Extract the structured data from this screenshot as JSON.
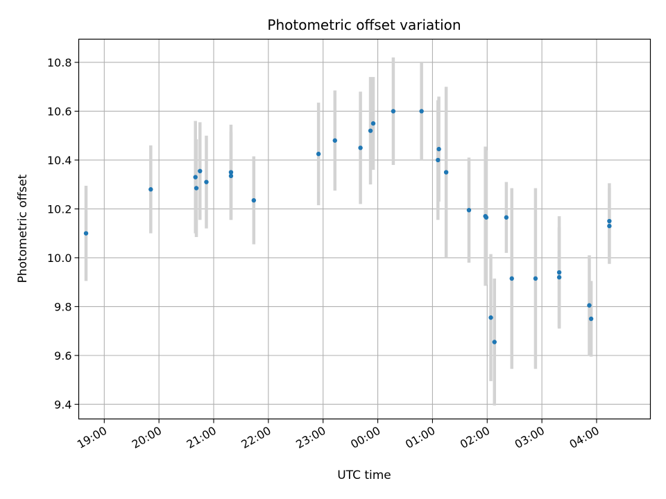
{
  "chart_data": {
    "type": "scatter",
    "title": "Photometric offset variation",
    "xlabel": "UTC time",
    "ylabel": "Photometric offset",
    "x_tick_labels": [
      "19:00",
      "20:00",
      "21:00",
      "22:00",
      "23:00",
      "00:00",
      "01:00",
      "02:00",
      "03:00",
      "04:00"
    ],
    "y_ticks": [
      9.4,
      9.6,
      9.8,
      10.0,
      10.2,
      10.4,
      10.6,
      10.8
    ],
    "y_tick_labels": [
      "9.4",
      "9.6",
      "9.8",
      "10.0",
      "10.2",
      "10.4",
      "10.6",
      "10.8"
    ],
    "xlim": [
      "18:32",
      "04:59"
    ],
    "ylim": [
      9.34,
      10.895
    ],
    "grid": true,
    "points": [
      {
        "x": "18:40",
        "y": 10.1,
        "err": 0.195
      },
      {
        "x": "19:51",
        "y": 10.28,
        "err": 0.18
      },
      {
        "x": "20:40",
        "y": 10.33,
        "err": 0.23
      },
      {
        "x": "20:41",
        "y": 10.285,
        "err": 0.2
      },
      {
        "x": "20:45",
        "y": 10.355,
        "err": 0.2
      },
      {
        "x": "20:52",
        "y": 10.31,
        "err": 0.19
      },
      {
        "x": "21:19",
        "y": 10.35,
        "err": 0.195
      },
      {
        "x": "21:19",
        "y": 10.335,
        "err": 0.18
      },
      {
        "x": "21:44",
        "y": 10.235,
        "err": 0.18
      },
      {
        "x": "22:55",
        "y": 10.425,
        "err": 0.21
      },
      {
        "x": "23:13",
        "y": 10.48,
        "err": 0.205
      },
      {
        "x": "23:41",
        "y": 10.45,
        "err": 0.23
      },
      {
        "x": "23:52",
        "y": 10.52,
        "err": 0.22
      },
      {
        "x": "23:55",
        "y": 10.55,
        "err": 0.19
      },
      {
        "x": "00:17",
        "y": 10.6,
        "err": 0.22
      },
      {
        "x": "00:48",
        "y": 10.6,
        "err": 0.2
      },
      {
        "x": "01:06",
        "y": 10.4,
        "err": 0.245
      },
      {
        "x": "01:07",
        "y": 10.445,
        "err": 0.215
      },
      {
        "x": "01:15",
        "y": 10.35,
        "err": 0.35
      },
      {
        "x": "01:40",
        "y": 10.195,
        "err": 0.215
      },
      {
        "x": "01:58",
        "y": 10.17,
        "err": 0.285
      },
      {
        "x": "01:59",
        "y": 10.165,
        "err": 0.275
      },
      {
        "x": "02:04",
        "y": 9.755,
        "err": 0.26
      },
      {
        "x": "02:08",
        "y": 9.655,
        "err": 0.26
      },
      {
        "x": "02:21",
        "y": 10.165,
        "err": 0.145
      },
      {
        "x": "02:27",
        "y": 9.915,
        "err": 0.37
      },
      {
        "x": "02:53",
        "y": 9.915,
        "err": 0.37
      },
      {
        "x": "03:19",
        "y": 9.94,
        "err": 0.23
      },
      {
        "x": "03:19",
        "y": 9.92,
        "err": 0.205
      },
      {
        "x": "03:52",
        "y": 9.805,
        "err": 0.205
      },
      {
        "x": "03:54",
        "y": 9.75,
        "err": 0.155
      },
      {
        "x": "04:14",
        "y": 10.15,
        "err": 0.155
      },
      {
        "x": "04:14",
        "y": 10.13,
        "err": 0.155
      }
    ],
    "colors": {
      "marker": "#1f77b4",
      "errorbar": "#d3d3d3",
      "grid": "#b0b0b0",
      "axes": "#000000"
    }
  }
}
